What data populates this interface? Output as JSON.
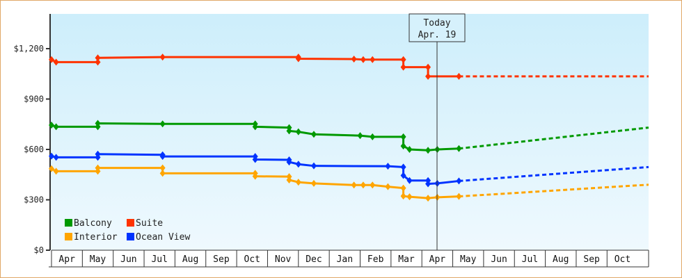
{
  "chart_data": {
    "type": "line",
    "title": "",
    "xlabel": "",
    "ylabel": "",
    "ylim": [
      0,
      1440
    ],
    "y_ticks": [
      "$0",
      "$300",
      "$600",
      "$900",
      "$1,200"
    ],
    "y_tick_values": [
      0,
      300,
      600,
      900,
      1200
    ],
    "x_ticks": [
      "Apr",
      "May",
      "Jun",
      "Jul",
      "Aug",
      "Sep",
      "Oct",
      "Nov",
      "Dec",
      "Jan",
      "Feb",
      "Mar",
      "Apr",
      "May",
      "Jun",
      "Jul",
      "Aug",
      "Sep",
      "Oct"
    ],
    "grid": false,
    "legend_position": "lower-left",
    "annotation": {
      "line1": "Today",
      "line2": "Apr. 19"
    },
    "series": [
      {
        "name": "Suite",
        "color": "#ff3300",
        "points": [
          [
            0.0,
            1135
          ],
          [
            0.15,
            1120
          ],
          [
            1.5,
            1120
          ],
          [
            1.5,
            1145
          ],
          [
            3.6,
            1150
          ],
          [
            8.0,
            1150
          ],
          [
            8.0,
            1140
          ],
          [
            9.8,
            1138
          ],
          [
            10.1,
            1135
          ],
          [
            10.4,
            1135
          ],
          [
            11.4,
            1135
          ],
          [
            11.4,
            1090
          ],
          [
            12.2,
            1090
          ],
          [
            12.2,
            1035
          ],
          [
            13.2,
            1035
          ]
        ],
        "projection": [
          [
            13.2,
            1035
          ],
          [
            19.6,
            1035
          ]
        ]
      },
      {
        "name": "Balcony",
        "color": "#009900",
        "points": [
          [
            0.0,
            745
          ],
          [
            0.15,
            735
          ],
          [
            1.5,
            735
          ],
          [
            1.5,
            755
          ],
          [
            3.6,
            752
          ],
          [
            6.6,
            752
          ],
          [
            6.6,
            735
          ],
          [
            7.7,
            730
          ],
          [
            7.7,
            710
          ],
          [
            8.0,
            705
          ],
          [
            8.5,
            690
          ],
          [
            10.0,
            682
          ],
          [
            10.4,
            675
          ],
          [
            11.4,
            675
          ],
          [
            11.4,
            620
          ],
          [
            11.6,
            600
          ],
          [
            12.2,
            595
          ],
          [
            12.5,
            600
          ],
          [
            13.2,
            605
          ]
        ],
        "projection": [
          [
            13.2,
            605
          ],
          [
            19.6,
            730
          ]
        ]
      },
      {
        "name": "Ocean View",
        "color": "#0033ff",
        "points": [
          [
            0.0,
            560
          ],
          [
            0.15,
            553
          ],
          [
            1.5,
            553
          ],
          [
            1.5,
            572
          ],
          [
            3.6,
            568
          ],
          [
            3.6,
            558
          ],
          [
            6.6,
            558
          ],
          [
            6.6,
            540
          ],
          [
            7.7,
            538
          ],
          [
            7.7,
            525
          ],
          [
            8.0,
            512
          ],
          [
            8.5,
            502
          ],
          [
            10.9,
            500
          ],
          [
            11.4,
            495
          ],
          [
            11.4,
            445
          ],
          [
            11.6,
            415
          ],
          [
            12.2,
            415
          ],
          [
            12.2,
            395
          ],
          [
            12.5,
            398
          ],
          [
            13.2,
            412
          ]
        ],
        "projection": [
          [
            13.2,
            412
          ],
          [
            19.6,
            495
          ]
        ]
      },
      {
        "name": "Interior",
        "color": "#ffa500",
        "points": [
          [
            0.0,
            485
          ],
          [
            0.15,
            470
          ],
          [
            1.5,
            470
          ],
          [
            1.5,
            490
          ],
          [
            3.6,
            490
          ],
          [
            3.6,
            458
          ],
          [
            6.6,
            458
          ],
          [
            6.6,
            440
          ],
          [
            7.7,
            438
          ],
          [
            7.7,
            418
          ],
          [
            8.0,
            405
          ],
          [
            8.5,
            398
          ],
          [
            9.8,
            388
          ],
          [
            10.1,
            388
          ],
          [
            10.4,
            388
          ],
          [
            10.9,
            378
          ],
          [
            11.4,
            370
          ],
          [
            11.4,
            322
          ],
          [
            11.6,
            318
          ],
          [
            12.2,
            310
          ],
          [
            12.5,
            315
          ],
          [
            13.2,
            320
          ]
        ],
        "projection": [
          [
            13.2,
            320
          ],
          [
            19.6,
            390
          ]
        ]
      }
    ]
  },
  "legend": [
    {
      "label": "Balcony",
      "color": "#009900"
    },
    {
      "label": "Suite",
      "color": "#ff3300"
    },
    {
      "label": "Interior",
      "color": "#ffa500"
    },
    {
      "label": "Ocean View",
      "color": "#0033ff"
    }
  ]
}
